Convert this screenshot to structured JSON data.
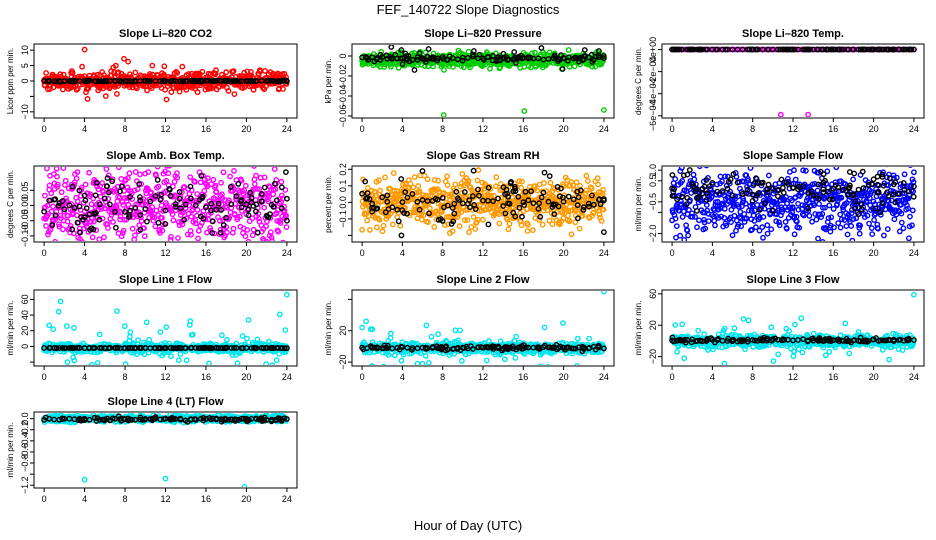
{
  "figure": {
    "title": "FEF_140722  Slope Diagnostics",
    "xlabel": "Hour of Day (UTC)"
  },
  "chart_data": [
    {
      "type": "scatter",
      "title": "Slope Li–820 CO2",
      "ylabel": "Licor ppm per min.",
      "xlim": [
        -1,
        25
      ],
      "ylim": [
        -12,
        12
      ],
      "xticks": [
        0,
        4,
        8,
        12,
        16,
        20,
        24
      ],
      "xtick_labels": [
        "0",
        "4",
        "8",
        "12",
        "16",
        "20",
        "24"
      ],
      "yticks": [
        -10,
        -5,
        0,
        5,
        10
      ],
      "ytick_labels": [
        "−10",
        "",
        "0",
        "5",
        "10"
      ],
      "series": [
        {
          "name": "all",
          "color": "#ff0000",
          "spread": 3.2,
          "tail": 0.5,
          "center": 0,
          "x": [
            4.0,
            10.7,
            4.3,
            7.9,
            6.1,
            12.1,
            8.3
          ],
          "y": [
            10.2,
            5.0,
            -5.8,
            7.2,
            -4.9,
            -6.0,
            6.3
          ]
        },
        {
          "name": "selected",
          "color": "#000000",
          "spread": 0.2,
          "center": 0,
          "x": [],
          "y": []
        }
      ]
    },
    {
      "type": "scatter",
      "title": "Slope Li–820 Pressure",
      "ylabel": "kPa per min.",
      "xlim": [
        -1,
        25
      ],
      "ylim": [
        -0.062,
        0.012
      ],
      "xticks": [
        0,
        4,
        8,
        12,
        16,
        20,
        24
      ],
      "xtick_labels": [
        "0",
        "4",
        "8",
        "12",
        "16",
        "20",
        "24"
      ],
      "yticks": [
        -0.06,
        -0.04,
        -0.02,
        0
      ],
      "ytick_labels": [
        "−0.06",
        "−0.04",
        "−0.02",
        "0"
      ],
      "series": [
        {
          "name": "all",
          "color": "#00cc00",
          "spread": 0.006,
          "center": -0.004,
          "x": [
            8.1,
            16.1,
            24.0,
            23.3,
            20.5
          ],
          "y": [
            -0.059,
            -0.055,
            -0.054,
            0.004,
            0.006
          ]
        },
        {
          "name": "selected",
          "color": "#000000",
          "spread": 0.004,
          "center": -0.002,
          "x": [
            2.9,
            3.9,
            5.2,
            6.6,
            11.1,
            15.1,
            17.8,
            19.9,
            22.1,
            23.5
          ],
          "y": [
            0.009,
            0.006,
            -0.014,
            0.007,
            0.005,
            0.004,
            0.008,
            -0.013,
            0.006,
            0.005
          ]
        }
      ]
    },
    {
      "type": "scatter",
      "title": "Slope Li–820 Temp.",
      "ylabel": "degrees C per min.",
      "xlim": [
        -1,
        25
      ],
      "ylim": [
        -0.00062,
        5e-05
      ],
      "xticks": [
        0,
        4,
        8,
        12,
        16,
        20,
        24
      ],
      "xtick_labels": [
        "0",
        "4",
        "8",
        "12",
        "16",
        "20",
        "24"
      ],
      "yticks": [
        -0.0006,
        -0.0004,
        -0.0002,
        0
      ],
      "ytick_labels": [
        "−6e−04",
        "−4e−04",
        "−2e−04",
        "0e+00"
      ],
      "series": [
        {
          "name": "all",
          "color": "#ff00ff",
          "spread": 0,
          "center": 0,
          "x": [
            10.8,
            13.5
          ],
          "y": [
            -0.00059,
            -0.00059
          ]
        },
        {
          "name": "selected",
          "color": "#000000",
          "spread": 0,
          "center": 0,
          "x": [],
          "y": []
        }
      ]
    },
    {
      "type": "scatter",
      "title": "Slope Amb. Box Temp.",
      "ylabel": "degrees C per min.",
      "xlim": [
        -1,
        25
      ],
      "ylim": [
        -0.12,
        0.13
      ],
      "xticks": [
        0,
        4,
        8,
        12,
        16,
        20,
        24
      ],
      "xtick_labels": [
        "0",
        "4",
        "8",
        "12",
        "16",
        "20",
        "24"
      ],
      "yticks": [
        -0.1,
        -0.05,
        0,
        0.05
      ],
      "ytick_labels": [
        "−0.10",
        "−0.05",
        "0.00",
        "0.05"
      ],
      "series": [
        {
          "name": "all",
          "color": "#ff00ff",
          "spread": 0.11,
          "center": 0,
          "x": [],
          "y": []
        },
        {
          "name": "selected",
          "color": "#000000",
          "spread": 0.09,
          "center": 0,
          "x": [
            23.9,
            23.5,
            24.0
          ],
          "y": [
            0.11,
            0.06,
            -0.05
          ]
        }
      ]
    },
    {
      "type": "scatter",
      "title": "Slope Gas Stream RH",
      "ylabel": "percent per min.",
      "xlim": [
        -1,
        25
      ],
      "ylim": [
        -0.24,
        0.22
      ],
      "xticks": [
        0,
        4,
        8,
        12,
        16,
        20,
        24
      ],
      "xtick_labels": [
        "0",
        "4",
        "8",
        "12",
        "16",
        "20",
        "24"
      ],
      "yticks": [
        -0.2,
        -0.1,
        0,
        0.1,
        0.2
      ],
      "ytick_labels": [
        "",
        "−0.1",
        "0.0",
        "0.1",
        "0.2"
      ],
      "series": [
        {
          "name": "all",
          "color": "#ff9900",
          "spread": 0.13,
          "center": 0.0,
          "x": [],
          "y": []
        },
        {
          "name": "selected",
          "color": "#000000",
          "spread": 0.12,
          "center": 0.0,
          "x": [
            3.9,
            18.1,
            24.0,
            6.0
          ],
          "y": [
            -0.2,
            0.18,
            -0.18,
            0.19
          ]
        }
      ]
    },
    {
      "type": "scatter",
      "title": "Slope Sample Flow",
      "ylabel": "ml/min per min.",
      "xlim": [
        -1,
        25
      ],
      "ylim": [
        -2.4,
        1.2
      ],
      "xticks": [
        0,
        4,
        8,
        12,
        16,
        20,
        24
      ],
      "xtick_labels": [
        "0",
        "4",
        "8",
        "12",
        "16",
        "20",
        "24"
      ],
      "yticks": [
        -2,
        -1,
        -0.5,
        0.5,
        1
      ],
      "ytick_labels": [
        "−2.0",
        "",
        "−0.5",
        "0.5",
        "1.0"
      ],
      "series": [
        {
          "name": "all",
          "color": "#0000ff",
          "spread": 1.3,
          "center": -0.5,
          "x": [
            24.0,
            12.1,
            0.8,
            1.2,
            22.6
          ],
          "y": [
            0.9,
            1.0,
            -2.1,
            -2.3,
            -1.9
          ]
        },
        {
          "name": "selected",
          "color": "#000000",
          "spread": 0.9,
          "center": 0.1,
          "x": [],
          "y": []
        }
      ]
    },
    {
      "type": "scatter",
      "title": "Slope Line 1 Flow",
      "ylabel": "ml/min per min.",
      "xlim": [
        -1,
        25
      ],
      "ylim": [
        -25,
        72
      ],
      "xticks": [
        0,
        4,
        8,
        12,
        16,
        20,
        24
      ],
      "xtick_labels": [
        "0",
        "4",
        "8",
        "12",
        "16",
        "20",
        "24"
      ],
      "yticks": [
        -20,
        0,
        20,
        40,
        60
      ],
      "ytick_labels": [
        "",
        "0",
        "20",
        "40",
        "60"
      ],
      "series": [
        {
          "name": "all",
          "color": "#00e5ee",
          "spread": 5,
          "tail": 22,
          "tailfrac": 0.12,
          "center": -2,
          "x": [
            24.0,
            0.5,
            0.9,
            2.3,
            5.3
          ],
          "y": [
            66,
            27,
            22,
            -20,
            -21
          ]
        },
        {
          "name": "selected",
          "color": "#000000",
          "spread": 0.4,
          "center": -2,
          "x": [],
          "y": []
        }
      ]
    },
    {
      "type": "scatter",
      "title": "Slope Line 2 Flow",
      "ylabel": "ml/min per min.",
      "xlim": [
        -1,
        25
      ],
      "ylim": [
        -25,
        72
      ],
      "xticks": [
        0,
        4,
        8,
        12,
        16,
        20,
        24
      ],
      "xtick_labels": [
        "0",
        "4",
        "8",
        "12",
        "16",
        "20",
        "24"
      ],
      "yticks": [
        -20,
        20,
        60
      ],
      "ytick_labels": [
        "−20",
        "20",
        ""
      ],
      "series": [
        {
          "name": "all",
          "color": "#00e5ee",
          "spread": 6,
          "tail": 18,
          "tailfrac": 0.1,
          "center": -2,
          "x": [
            24.0,
            0.4,
            1.0,
            5.5
          ],
          "y": [
            70,
            32,
            22,
            -22
          ]
        },
        {
          "name": "selected",
          "color": "#000000",
          "spread": 3,
          "center": -2,
          "x": [],
          "y": []
        }
      ]
    },
    {
      "type": "scatter",
      "title": "Slope Line 3 Flow",
      "ylabel": "ml/min per min.",
      "xlim": [
        -1,
        25
      ],
      "ylim": [
        -32,
        65
      ],
      "xticks": [
        0,
        4,
        8,
        12,
        16,
        20,
        24
      ],
      "xtick_labels": [
        "0",
        "4",
        "8",
        "12",
        "16",
        "20",
        "24"
      ],
      "yticks": [
        -20,
        20,
        60
      ],
      "ytick_labels": [
        "−20",
        "20",
        "60"
      ],
      "series": [
        {
          "name": "all",
          "color": "#00e5ee",
          "spread": 7,
          "tail": 14,
          "tailfrac": 0.1,
          "center": 0,
          "x": [
            24.0,
            5.2,
            1.2,
            0.5
          ],
          "y": [
            59,
            -29,
            -22,
            -14
          ]
        },
        {
          "name": "selected",
          "color": "#000000",
          "spread": 3,
          "center": 1,
          "x": [],
          "y": []
        }
      ]
    },
    {
      "type": "scatter",
      "title": "Slope Line 4 (LT) Flow",
      "ylabel": "ml/min per min.",
      "xlim": [
        -1,
        25
      ],
      "ylim": [
        -1.25,
        0.12
      ],
      "xticks": [
        0,
        4,
        8,
        12,
        16,
        20,
        24
      ],
      "xtick_labels": [
        "0",
        "4",
        "8",
        "12",
        "16",
        "20",
        "24"
      ],
      "yticks": [
        -1.2,
        -1.0,
        -0.8,
        -0.6,
        -0.4,
        -0.2,
        0
      ],
      "ytick_labels": [
        "−1.2",
        "",
        "−0.8",
        "−0.6",
        "−0.4",
        "−0.2",
        "0.0"
      ],
      "series": [
        {
          "name": "all",
          "color": "#00e5ee",
          "spread": 0.05,
          "center": 0.0,
          "x": [
            4.0,
            12.0,
            19.8
          ],
          "y": [
            -1.1,
            -1.08,
            -1.23
          ]
        },
        {
          "name": "selected",
          "color": "#000000",
          "spread": 0.04,
          "center": -0.01,
          "x": [],
          "y": []
        }
      ]
    }
  ]
}
